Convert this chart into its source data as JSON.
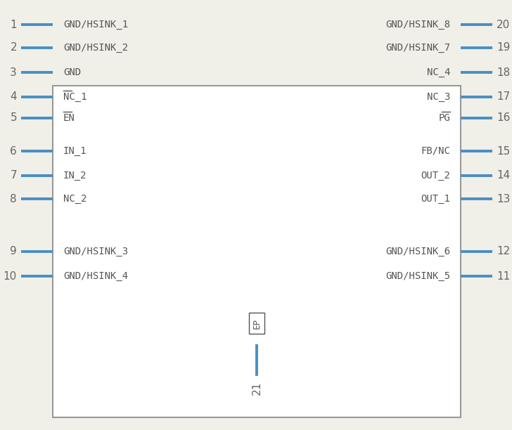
{
  "bg_color": "#f0efe8",
  "body_color": "#999999",
  "pin_color": "#4a8ec2",
  "text_color": "#555555",
  "num_color": "#666666",
  "left_pins": [
    {
      "num": 1,
      "label": "GND/HSINK_1",
      "overline": false,
      "row": 0
    },
    {
      "num": 2,
      "label": "GND/HSINK_2",
      "overline": false,
      "row": 1
    },
    {
      "num": 3,
      "label": "GND",
      "overline": false,
      "row": 2
    },
    {
      "num": 4,
      "label": "NC_1",
      "overline": true,
      "row": 3
    },
    {
      "num": 5,
      "label": "EN",
      "overline": true,
      "row": 4
    },
    {
      "num": 6,
      "label": "IN_1",
      "overline": false,
      "row": 5
    },
    {
      "num": 7,
      "label": "IN_2",
      "overline": false,
      "row": 6
    },
    {
      "num": 8,
      "label": "NC_2",
      "overline": false,
      "row": 7
    },
    {
      "num": 9,
      "label": "GND/HSINK_3",
      "overline": false,
      "row": 8
    },
    {
      "num": 10,
      "label": "GND/HSINK_4",
      "overline": false,
      "row": 9
    }
  ],
  "right_pins": [
    {
      "num": 20,
      "label": "GND/HSINK_8",
      "overline": false,
      "row": 0
    },
    {
      "num": 19,
      "label": "GND/HSINK_7",
      "overline": false,
      "row": 1
    },
    {
      "num": 18,
      "label": "NC_4",
      "overline": false,
      "row": 2
    },
    {
      "num": 17,
      "label": "NC_3",
      "overline": false,
      "row": 3
    },
    {
      "num": 16,
      "label": "PG",
      "overline": true,
      "row": 4
    },
    {
      "num": 15,
      "label": "FB/NC",
      "overline": false,
      "row": 5
    },
    {
      "num": 14,
      "label": "OUT_2",
      "overline": false,
      "row": 6
    },
    {
      "num": 13,
      "label": "OUT_1",
      "overline": false,
      "row": 7
    },
    {
      "num": 12,
      "label": "GND/HSINK_6",
      "overline": false,
      "row": 8
    },
    {
      "num": 11,
      "label": "GND/HSINK_5",
      "overline": false,
      "row": 9
    }
  ],
  "pin_rows": 10,
  "row_heights": [
    1.0,
    1.0,
    1.0,
    1.0,
    1.0,
    1.3,
    1.0,
    1.0,
    1.0,
    1.0
  ],
  "font_size_label": 10,
  "font_size_num": 11,
  "font_size_ep": 9
}
